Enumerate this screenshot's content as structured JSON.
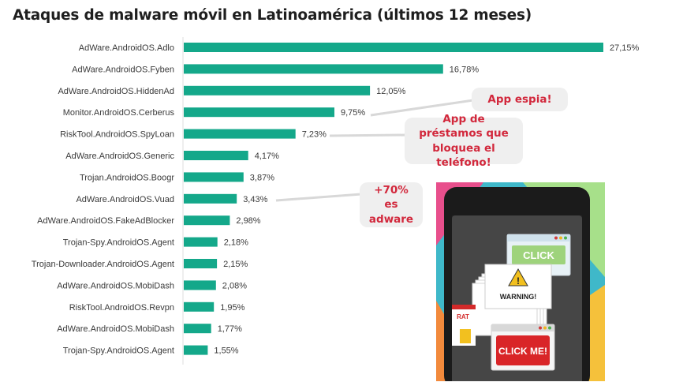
{
  "title": "Ataques de malware móvil en Latinoamérica (últimos 12 meses)",
  "chart_data": {
    "type": "bar",
    "orientation": "horizontal",
    "title": "Ataques de malware móvil en Latinoamérica (últimos 12 meses)",
    "xlabel": "",
    "ylabel": "",
    "xlim": [
      0,
      27.15
    ],
    "grid": false,
    "bar_color": "#14a88a",
    "categories": [
      "AdWare.AndroidOS.Adlo",
      "AdWare.AndroidOS.Fyben",
      "AdWare.AndroidOS.HiddenAd",
      "Monitor.AndroidOS.Cerberus",
      "RiskTool.AndroidOS.SpyLoan",
      "AdWare.AndroidOS.Generic",
      "Trojan.AndroidOS.Boogr",
      "AdWare.AndroidOS.Vuad",
      "AdWare.AndroidOS.FakeAdBlocker",
      "Trojan-Spy.AndroidOS.Agent",
      "Trojan-Downloader.AndroidOS.Agent",
      "AdWare.AndroidOS.MobiDash",
      "RiskTool.AndroidOS.Revpn",
      "AdWare.AndroidOS.MobiDash",
      "Trojan-Spy.AndroidOS.Agent"
    ],
    "values": [
      27.15,
      16.78,
      12.05,
      9.75,
      7.23,
      4.17,
      3.87,
      3.43,
      2.98,
      2.18,
      2.15,
      2.08,
      1.95,
      1.77,
      1.55
    ],
    "value_labels": [
      "27,15%",
      "16,78%",
      "12,05%",
      "9,75%",
      "7,23%",
      "4,17%",
      "3,87%",
      "3,43%",
      "2,98%",
      "2,18%",
      "2,15%",
      "2,08%",
      "1,95%",
      "1,77%",
      "1,55%"
    ]
  },
  "callouts": {
    "spy_app": "App espia!",
    "loan_app": "App de préstamos que bloquea el teléfono!",
    "adware": "+70% es adware"
  },
  "illustration": {
    "click_label": "CLICK",
    "warning_label": "WARNING!",
    "click_me_label": "CLICK ME!",
    "rat_label": "RAT"
  },
  "colors": {
    "bar": "#14a88a",
    "callout_text": "#d2283c",
    "callout_bg": "#efefef",
    "leader_line": "#d8d8d8"
  }
}
